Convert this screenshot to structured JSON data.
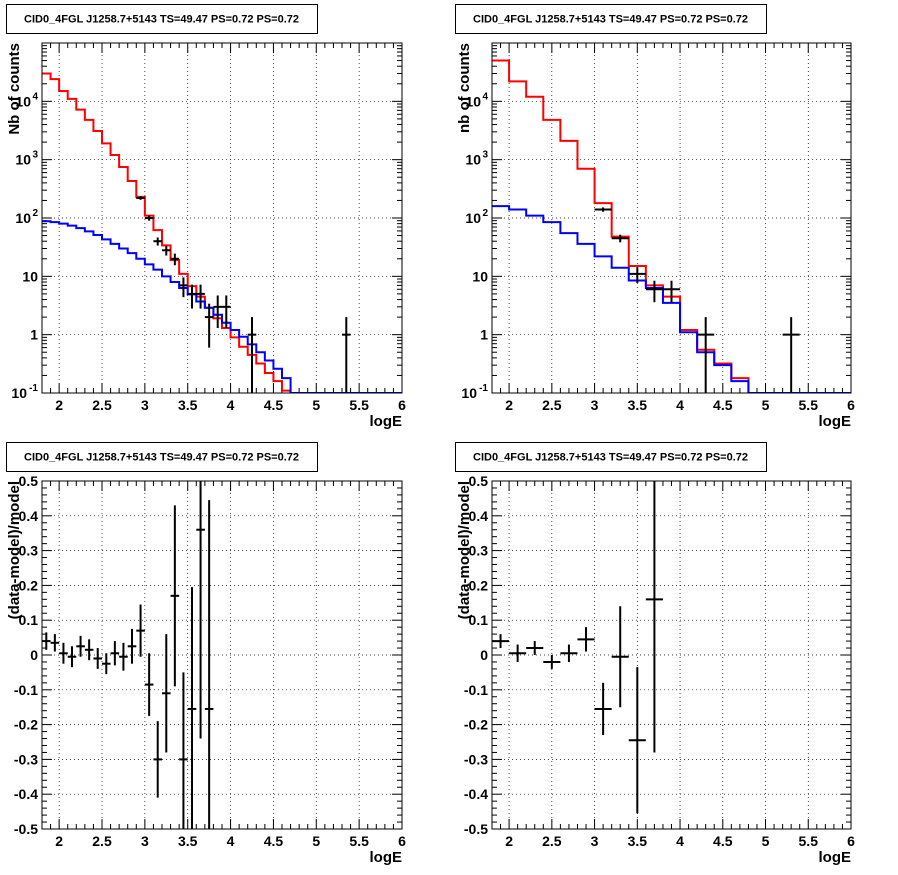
{
  "chart_data": [
    {
      "type": "line",
      "title": "CID0_4FGL J1258.7+5143 TS=49.47 PS=0.72 PS=0.72",
      "xlabel": "logE",
      "ylabel": "Nb of counts",
      "xlim": [
        1.8,
        6.0
      ],
      "ylim": [
        0.1,
        100000
      ],
      "log_y": true,
      "grid": true,
      "x_ticks": [
        "2",
        "2.5",
        "3",
        "3.5",
        "4",
        "4.5",
        "5",
        "5.5",
        "6"
      ],
      "y_ticks": [
        "10^-1",
        "1",
        "10",
        "10^2",
        "10^3",
        "10^4"
      ],
      "bin_edges": [
        1.8,
        1.9,
        2.0,
        2.1,
        2.2,
        2.3,
        2.4,
        2.5,
        2.6,
        2.7,
        2.8,
        2.9,
        3.0,
        3.1,
        3.2,
        3.3,
        3.4,
        3.5,
        3.6,
        3.7,
        3.8,
        3.9,
        4.0,
        4.1,
        4.2,
        4.3,
        4.4,
        4.5,
        4.6,
        4.7,
        4.8,
        4.9,
        5.0,
        5.1,
        5.2,
        5.3,
        5.4,
        5.5,
        5.6,
        5.7,
        5.8,
        5.9,
        6.0
      ],
      "series": [
        {
          "color": "#ff0000",
          "values": [
            30000,
            24000,
            15000,
            11000,
            7200,
            4800,
            3100,
            1900,
            1200,
            750,
            430,
            230,
            110,
            62,
            34,
            19,
            11,
            6.8,
            4.5,
            2.9,
            1.9,
            1.3,
            0.9,
            0.62,
            0.45,
            0.32,
            0.22,
            0.16,
            0.11,
            0.1,
            0.1,
            0.1,
            0.1,
            0.1,
            0.1,
            0.1,
            0.1,
            0.1,
            0.1,
            0.1,
            0.1,
            0.1
          ]
        },
        {
          "color": "#0000ff",
          "values": [
            88,
            85,
            80,
            74,
            67,
            59,
            51,
            43,
            36,
            30,
            25,
            20,
            16,
            13,
            10,
            8,
            6.3,
            4.9,
            3.7,
            2.9,
            2.2,
            1.6,
            1.2,
            0.92,
            0.68,
            0.5,
            0.36,
            0.26,
            0.18,
            0.1,
            0.1,
            0.1,
            0.1,
            0.1,
            0.1,
            0.1,
            0.1,
            0.1,
            0.1,
            0.1,
            0.1,
            0.1
          ]
        }
      ],
      "data_points": [
        {
          "x": 2.95,
          "y": 220,
          "yerr": 15
        },
        {
          "x": 3.05,
          "y": 100,
          "yerr": 10
        },
        {
          "x": 3.15,
          "y": 40,
          "yerr": 6.3
        },
        {
          "x": 3.25,
          "y": 28,
          "yerr": 5.3
        },
        {
          "x": 3.35,
          "y": 20,
          "yerr": 4.5
        },
        {
          "x": 3.45,
          "y": 7,
          "yerr": 2.6
        },
        {
          "x": 3.55,
          "y": 5,
          "yerr": 2.2
        },
        {
          "x": 3.65,
          "y": 5,
          "yerr": 2.2
        },
        {
          "x": 3.75,
          "y": 2,
          "yerr": 1.4
        },
        {
          "x": 3.85,
          "y": 3,
          "yerr": 1.7
        },
        {
          "x": 3.95,
          "y": 3,
          "yerr": 1.7
        },
        {
          "x": 4.25,
          "y": 1,
          "yerr": 1
        },
        {
          "x": 5.35,
          "y": 1,
          "yerr": 1
        }
      ],
      "bin_half_width": 0.05
    },
    {
      "type": "line",
      "title": "CID0_4FGL J1258.7+5143 TS=49.47 PS=0.72 PS=0.72",
      "xlabel": "logE",
      "ylabel": "nb of counts",
      "xlim": [
        1.8,
        6.0
      ],
      "ylim": [
        0.1,
        100000
      ],
      "log_y": true,
      "grid": true,
      "x_ticks": [
        "2",
        "2.5",
        "3",
        "3.5",
        "4",
        "4.5",
        "5",
        "5.5",
        "6"
      ],
      "y_ticks": [
        "10^-1",
        "1",
        "10",
        "10^2",
        "10^3",
        "10^4"
      ],
      "bin_edges": [
        1.8,
        2.0,
        2.2,
        2.4,
        2.6,
        2.8,
        3.0,
        3.2,
        3.4,
        3.6,
        3.8,
        4.0,
        4.2,
        4.4,
        4.6,
        4.8,
        5.0,
        5.2,
        5.4,
        5.6,
        5.8,
        6.0
      ],
      "series": [
        {
          "color": "#ff0000",
          "values": [
            50000,
            22000,
            12000,
            4800,
            2100,
            700,
            180,
            48,
            15,
            7,
            4.5,
            1.2,
            0.55,
            0.32,
            0.18,
            0.1,
            0.1,
            0.1,
            0.1,
            0.1,
            0.1
          ]
        },
        {
          "color": "#0000ff",
          "values": [
            160,
            140,
            110,
            85,
            55,
            36,
            22,
            14,
            8.5,
            6.3,
            3.5,
            1.1,
            0.5,
            0.3,
            0.16,
            0.1,
            0.1,
            0.1,
            0.1,
            0.1,
            0.1
          ]
        }
      ],
      "data_points": [
        {
          "x": 3.1,
          "y": 140,
          "yerr": 12
        },
        {
          "x": 3.3,
          "y": 45,
          "yerr": 6.7
        },
        {
          "x": 3.5,
          "y": 11,
          "yerr": 3.3
        },
        {
          "x": 3.7,
          "y": 6,
          "yerr": 2.4
        },
        {
          "x": 3.9,
          "y": 6,
          "yerr": 2.4
        },
        {
          "x": 4.3,
          "y": 1,
          "yerr": 1
        },
        {
          "x": 5.3,
          "y": 1,
          "yerr": 1
        }
      ],
      "bin_half_width": 0.1
    },
    {
      "type": "scatter",
      "title": "CID0_4FGL J1258.7+5143 TS=49.47 PS=0.72 PS=0.72",
      "xlabel": "logE",
      "ylabel": "(data-model)/model",
      "xlim": [
        1.8,
        6.0
      ],
      "ylim": [
        -0.5,
        0.5
      ],
      "log_y": false,
      "grid": true,
      "x_ticks": [
        "2",
        "2.5",
        "3",
        "3.5",
        "4",
        "4.5",
        "5",
        "5.5",
        "6"
      ],
      "y_ticks": [
        "-0.5",
        "-0.4",
        "-0.3",
        "-0.2",
        "-0.1",
        "0",
        "0.1",
        "0.2",
        "0.3",
        "0.4",
        "0.5"
      ],
      "data_points": [
        {
          "x": 1.85,
          "y": 0.04,
          "yerr": 0.025
        },
        {
          "x": 1.95,
          "y": 0.035,
          "yerr": 0.025
        },
        {
          "x": 2.05,
          "y": 0.005,
          "yerr": 0.03
        },
        {
          "x": 2.15,
          "y": -0.005,
          "yerr": 0.03
        },
        {
          "x": 2.25,
          "y": 0.025,
          "yerr": 0.03
        },
        {
          "x": 2.35,
          "y": 0.015,
          "yerr": 0.03
        },
        {
          "x": 2.45,
          "y": -0.01,
          "yerr": 0.03
        },
        {
          "x": 2.55,
          "y": -0.025,
          "yerr": 0.03
        },
        {
          "x": 2.65,
          "y": 0.005,
          "yerr": 0.035
        },
        {
          "x": 2.75,
          "y": -0.005,
          "yerr": 0.04
        },
        {
          "x": 2.85,
          "y": 0.025,
          "yerr": 0.05
        },
        {
          "x": 2.95,
          "y": 0.07,
          "yerr": 0.075
        },
        {
          "x": 3.05,
          "y": -0.085,
          "yerr": 0.09
        },
        {
          "x": 3.15,
          "y": -0.3,
          "yerr": 0.11
        },
        {
          "x": 3.25,
          "y": -0.11,
          "yerr": 0.17
        },
        {
          "x": 3.35,
          "y": 0.17,
          "yerr": 0.26
        },
        {
          "x": 3.45,
          "y": -0.3,
          "yerr": 0.25
        },
        {
          "x": 3.55,
          "y": -0.155,
          "yerr": 0.35
        },
        {
          "x": 3.65,
          "y": 0.36,
          "yerr": 0.6
        },
        {
          "x": 3.75,
          "y": -0.155,
          "yerr": 0.6
        }
      ],
      "bin_half_width": 0.05
    },
    {
      "type": "scatter",
      "title": "CID0_4FGL J1258.7+5143 TS=49.47 PS=0.72 PS=0.72",
      "xlabel": "logE",
      "ylabel": "(data-model)/model",
      "xlim": [
        1.8,
        6.0
      ],
      "ylim": [
        -0.5,
        0.5
      ],
      "log_y": false,
      "grid": true,
      "x_ticks": [
        "2",
        "2.5",
        "3",
        "3.5",
        "4",
        "4.5",
        "5",
        "5.5",
        "6"
      ],
      "y_ticks": [
        "-0.5",
        "-0.4",
        "-0.3",
        "-0.2",
        "-0.1",
        "0",
        "0.1",
        "0.2",
        "0.3",
        "0.4",
        "0.5"
      ],
      "data_points": [
        {
          "x": 1.9,
          "y": 0.04,
          "yerr": 0.02
        },
        {
          "x": 2.1,
          "y": 0.005,
          "yerr": 0.025
        },
        {
          "x": 2.3,
          "y": 0.02,
          "yerr": 0.02
        },
        {
          "x": 2.5,
          "y": -0.02,
          "yerr": 0.02
        },
        {
          "x": 2.7,
          "y": 0.005,
          "yerr": 0.025
        },
        {
          "x": 2.9,
          "y": 0.045,
          "yerr": 0.035
        },
        {
          "x": 3.1,
          "y": -0.155,
          "yerr": 0.075
        },
        {
          "x": 3.3,
          "y": -0.005,
          "yerr": 0.145
        },
        {
          "x": 3.5,
          "y": -0.245,
          "yerr": 0.21
        },
        {
          "x": 3.7,
          "y": 0.16,
          "yerr": 0.44
        }
      ],
      "bin_half_width": 0.1
    }
  ]
}
